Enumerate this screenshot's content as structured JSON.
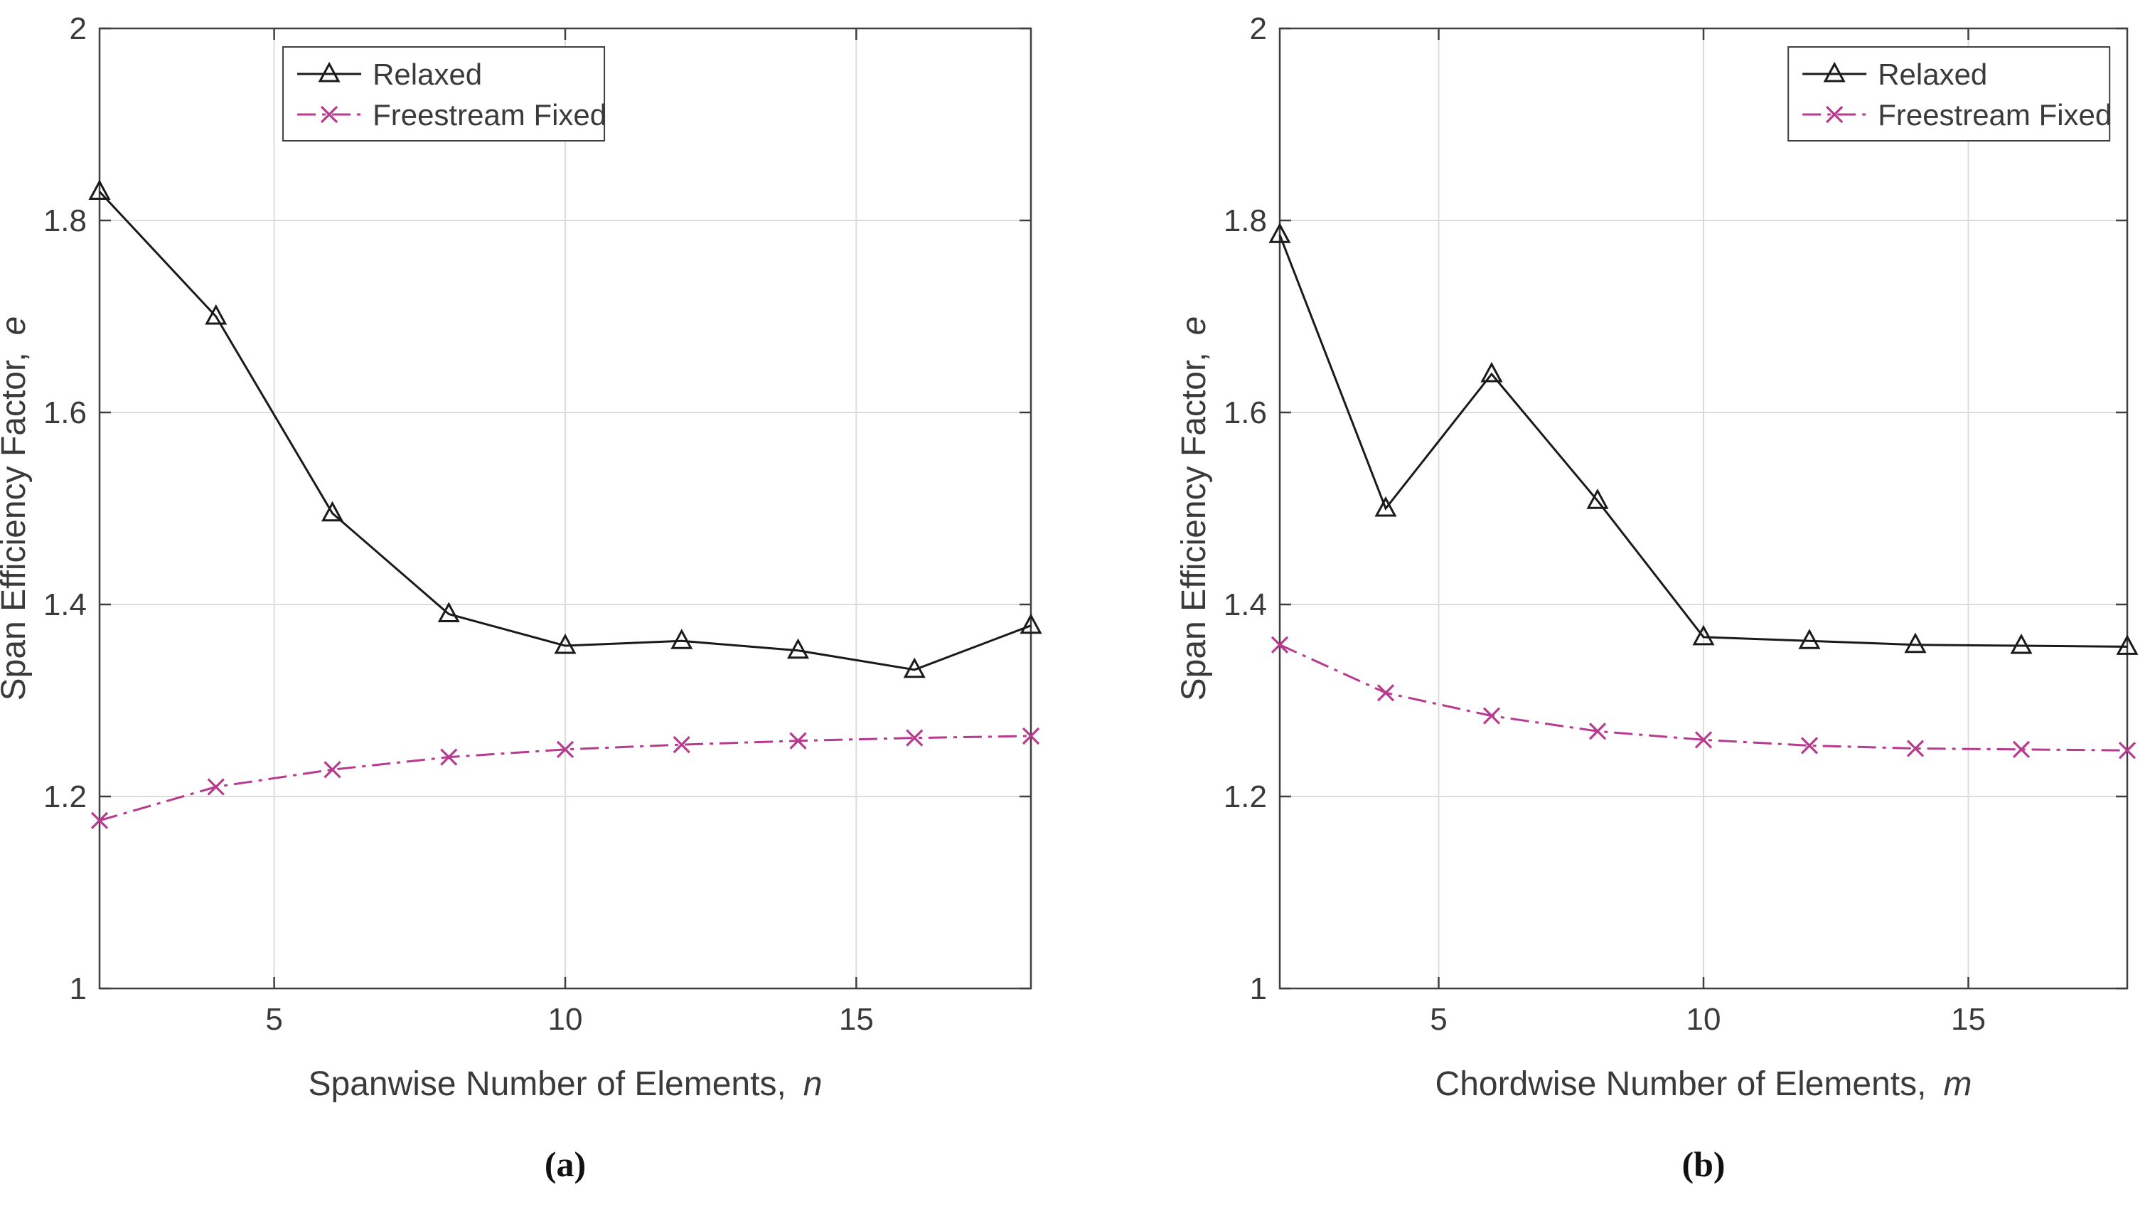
{
  "theme": {
    "background": "#ffffff",
    "axis_color": "#3f3f3f",
    "grid_color": "#dcdcdc",
    "text_color": "#3a3a3a",
    "legend_background": "#ffffff",
    "relaxed_color": "#1a1a1a",
    "freestream_color": "#b83a8e"
  },
  "figure": {
    "captions": {
      "a": "(a)",
      "b": "(b)"
    }
  },
  "chart_data": [
    {
      "type": "line",
      "caption": "(a)",
      "xlabel": "Spanwise Number of Elements,",
      "xlabel_var": "n",
      "ylabel": "Span Efficiency Factor,",
      "ylabel_var": "e",
      "xlim": [
        2,
        18
      ],
      "ylim": [
        1,
        2
      ],
      "xticks": [
        5,
        10,
        15
      ],
      "yticks": [
        1,
        1.2,
        1.4,
        1.6,
        1.8,
        2
      ],
      "grid": true,
      "legend_position": "north",
      "legend_x_frac": 0.197,
      "x": [
        2,
        4,
        6,
        8,
        10,
        12,
        14,
        16,
        18
      ],
      "series": [
        {
          "name": "Relaxed",
          "color": "#1a1a1a",
          "line": "solid",
          "marker": "triangle",
          "values": [
            1.83,
            1.7,
            1.495,
            1.39,
            1.357,
            1.362,
            1.352,
            1.332,
            1.378
          ]
        },
        {
          "name": "Freestream Fixed",
          "color": "#b83a8e",
          "line": "dashdot",
          "marker": "x",
          "values": [
            1.175,
            1.21,
            1.228,
            1.241,
            1.249,
            1.254,
            1.258,
            1.261,
            1.263
          ]
        }
      ]
    },
    {
      "type": "line",
      "caption": "(b)",
      "xlabel": "Chordwise Number of Elements,",
      "xlabel_var": "m",
      "ylabel": "Span Efficiency Factor,",
      "ylabel_var": "e",
      "xlim": [
        2,
        18
      ],
      "ylim": [
        1,
        2
      ],
      "xticks": [
        5,
        10,
        15
      ],
      "yticks": [
        1,
        1.2,
        1.4,
        1.6,
        1.8,
        2
      ],
      "grid": true,
      "legend_position": "northeast",
      "legend_x_frac": 0.6,
      "x": [
        2,
        4,
        6,
        8,
        10,
        12,
        14,
        16,
        18
      ],
      "series": [
        {
          "name": "Relaxed",
          "color": "#1a1a1a",
          "line": "solid",
          "marker": "triangle",
          "values": [
            1.785,
            1.5,
            1.64,
            1.508,
            1.366,
            1.362,
            1.358,
            1.357,
            1.356
          ]
        },
        {
          "name": "Freestream Fixed",
          "color": "#b83a8e",
          "line": "dashdot",
          "marker": "x",
          "values": [
            1.358,
            1.308,
            1.284,
            1.268,
            1.259,
            1.253,
            1.25,
            1.249,
            1.248
          ]
        }
      ]
    }
  ]
}
